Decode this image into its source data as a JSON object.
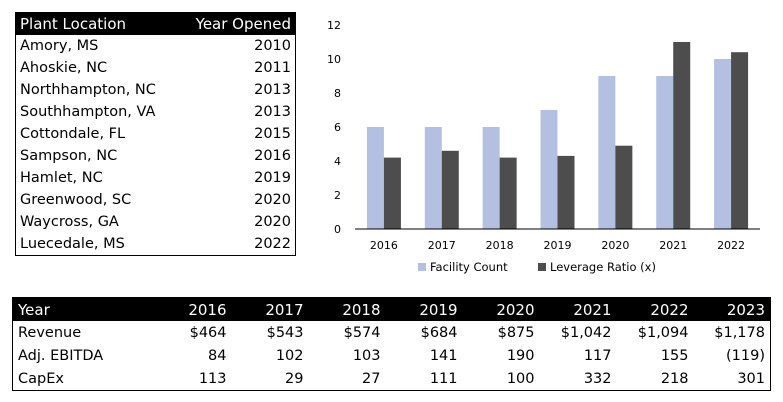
{
  "plants": {
    "header": {
      "location": "Plant Location",
      "year": "Year Opened"
    },
    "rows": [
      {
        "location": "Amory, MS",
        "year": "2010"
      },
      {
        "location": "Ahoskie, NC",
        "year": "2011"
      },
      {
        "location": "Northhampton, NC",
        "year": "2013"
      },
      {
        "location": "Southhampton, VA",
        "year": "2013"
      },
      {
        "location": "Cottondale, FL",
        "year": "2015"
      },
      {
        "location": "Sampson, NC",
        "year": "2016"
      },
      {
        "location": "Hamlet, NC",
        "year": "2019"
      },
      {
        "location": "Greenwood, SC",
        "year": "2020"
      },
      {
        "location": "Waycross, GA",
        "year": "2020"
      },
      {
        "location": "Luecedale, MS",
        "year": "2022"
      }
    ]
  },
  "chart_data": {
    "type": "bar",
    "title": "",
    "xlabel": "",
    "ylabel": "",
    "categories": [
      "2016",
      "2017",
      "2018",
      "2019",
      "2020",
      "2021",
      "2022"
    ],
    "series": [
      {
        "name": "Facility Count",
        "color": "#b4c0e2",
        "values": [
          6,
          6,
          6,
          7,
          9,
          9,
          10
        ]
      },
      {
        "name": "Leverage Ratio (x)",
        "color": "#4d4d4d",
        "values": [
          4.2,
          4.6,
          4.2,
          4.3,
          4.9,
          11.0,
          10.4
        ]
      }
    ],
    "ylim": [
      0,
      12
    ],
    "yticks": [
      "0",
      "2",
      "4",
      "6",
      "8",
      "10",
      "12"
    ],
    "grid": false,
    "legend": "bottom"
  },
  "financials": {
    "header": [
      "Year",
      "2016",
      "2017",
      "2018",
      "2019",
      "2020",
      "2021",
      "2022",
      "2023"
    ],
    "rows": [
      {
        "label": "Revenue",
        "values": [
          "$464",
          "$543",
          "$574",
          "$684",
          "$875",
          "$1,042",
          "$1,094",
          "$1,178"
        ]
      },
      {
        "label": "Adj. EBITDA",
        "values": [
          "84",
          "102",
          "103",
          "141",
          "190",
          "117",
          "155",
          "(119)"
        ]
      },
      {
        "label": "CapEx",
        "values": [
          "113",
          "29",
          "27",
          "111",
          "100",
          "332",
          "218",
          "301"
        ]
      }
    ]
  }
}
